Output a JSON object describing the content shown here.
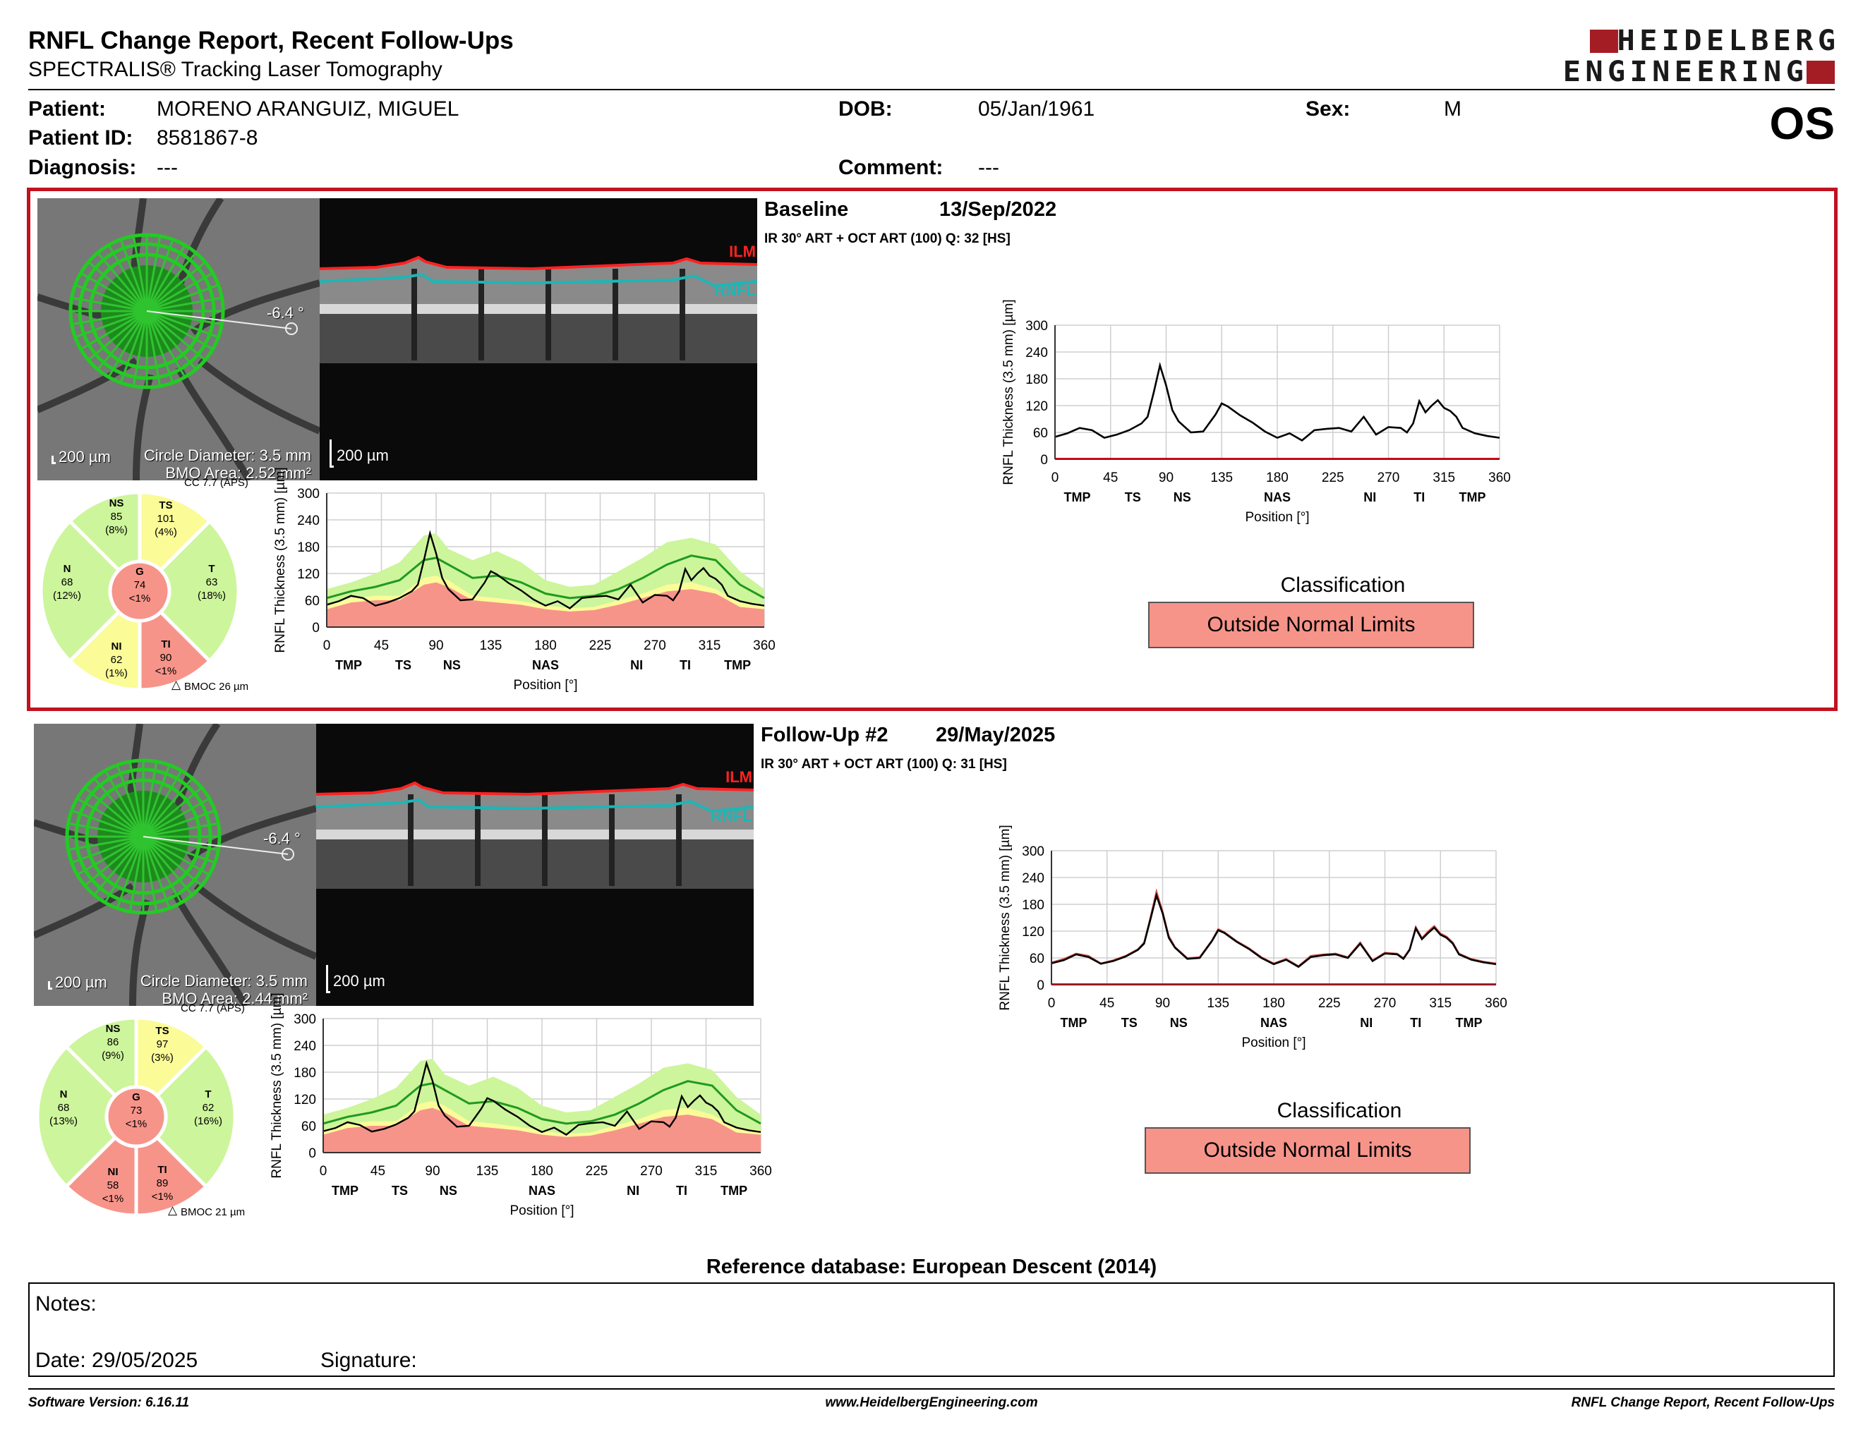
{
  "header": {
    "title": "RNFL Change Report, Recent Follow-Ups",
    "subtitle": "SPECTRALIS® Tracking Laser Tomography",
    "logo_line1": "HEIDELBERG",
    "logo_line2": "ENGINEERING",
    "eye": "OS"
  },
  "patient": {
    "name_label": "Patient:",
    "name": "MORENO ARANGUIZ, MIGUEL",
    "id_label": "Patient ID:",
    "id": "8581867-8",
    "diagnosis_label": "Diagnosis:",
    "diagnosis": "---",
    "dob_label": "DOB:",
    "dob": "05/Jan/1961",
    "sex_label": "Sex:",
    "sex": "M",
    "comment_label": "Comment:",
    "comment": "---"
  },
  "colors": {
    "outside": "#f7948a",
    "borderline": "#fbfb98",
    "within": "#cdf59b",
    "accent": "#c1121f"
  },
  "panels": [
    {
      "title": "Baseline",
      "date": "13/Sep/2022",
      "scan_info": "IR 30° ART + OCT ART (100) Q: 32 [HS]",
      "angle": "-6.4 °",
      "scale_fundus": "200 µm",
      "scale_bscan": "200 µm",
      "circle_diameter": "Circle Diameter: 3.5 mm",
      "bmo_area": "BMO Area: 2.52 mm²",
      "cc": "CC 7.7 (APS)",
      "bmoc": "BMOC 26 µm",
      "ilm": "ILM",
      "rnfl": "RNFL",
      "sectors": {
        "NS": {
          "label": "NS",
          "value": "85",
          "pct": "(8%)",
          "cls": "within"
        },
        "TS": {
          "label": "TS",
          "value": "101",
          "pct": "(4%)",
          "cls": "borderline"
        },
        "N": {
          "label": "N",
          "value": "68",
          "pct": "(12%)",
          "cls": "within"
        },
        "G": {
          "label": "G",
          "value": "74",
          "pct": "<1%",
          "cls": "outside"
        },
        "T": {
          "label": "T",
          "value": "63",
          "pct": "(18%)",
          "cls": "within"
        },
        "NI": {
          "label": "NI",
          "value": "62",
          "pct": "(1%)",
          "cls": "borderline"
        },
        "TI": {
          "label": "TI",
          "value": "90",
          "pct": "<1%",
          "cls": "outside"
        }
      },
      "classification_label": "Classification",
      "classification": "Outside Normal Limits"
    },
    {
      "title": "Follow-Up #2",
      "date": "29/May/2025",
      "scan_info": "IR 30° ART + OCT ART (100) Q: 31 [HS]",
      "angle": "-6.4 °",
      "scale_fundus": "200 µm",
      "scale_bscan": "200 µm",
      "circle_diameter": "Circle Diameter: 3.5 mm",
      "bmo_area": "BMO Area: 2.44 mm²",
      "cc": "CC 7.7 (APS)",
      "bmoc": "BMOC 21 µm",
      "ilm": "ILM",
      "rnfl": "RNFL",
      "sectors": {
        "NS": {
          "label": "NS",
          "value": "86",
          "pct": "(9%)",
          "cls": "within"
        },
        "TS": {
          "label": "TS",
          "value": "97",
          "pct": "(3%)",
          "cls": "borderline"
        },
        "N": {
          "label": "N",
          "value": "68",
          "pct": "(13%)",
          "cls": "within"
        },
        "G": {
          "label": "G",
          "value": "73",
          "pct": "<1%",
          "cls": "outside"
        },
        "T": {
          "label": "T",
          "value": "62",
          "pct": "(16%)",
          "cls": "within"
        },
        "NI": {
          "label": "NI",
          "value": "58",
          "pct": "<1%",
          "cls": "outside"
        },
        "TI": {
          "label": "TI",
          "value": "89",
          "pct": "<1%",
          "cls": "outside"
        }
      },
      "classification_label": "Classification",
      "classification": "Outside Normal Limits"
    }
  ],
  "chart_data": [
    {
      "type": "line",
      "ylabel": "RNFL Thickness (3.5 mm) [µm]",
      "xlabel": "Position [°]",
      "xlim": [
        0,
        360
      ],
      "ylim": [
        0,
        300
      ],
      "xticks": [
        0,
        45,
        90,
        135,
        180,
        225,
        270,
        315,
        360
      ],
      "yticks": [
        0,
        60,
        120,
        180,
        240,
        300
      ],
      "sector_labels": [
        {
          "label": "TMP",
          "x": 18
        },
        {
          "label": "TS",
          "x": 63
        },
        {
          "label": "NS",
          "x": 103
        },
        {
          "label": "NAS",
          "x": 180
        },
        {
          "label": "NI",
          "x": 255
        },
        {
          "label": "TI",
          "x": 295
        },
        {
          "label": "TMP",
          "x": 338
        }
      ],
      "x": [
        0,
        10,
        20,
        30,
        40,
        50,
        60,
        70,
        75,
        80,
        85,
        90,
        95,
        100,
        110,
        120,
        130,
        135,
        140,
        150,
        160,
        170,
        180,
        190,
        200,
        210,
        220,
        230,
        240,
        250,
        260,
        270,
        280,
        285,
        290,
        295,
        300,
        305,
        310,
        315,
        320,
        325,
        330,
        340,
        350,
        360
      ],
      "series": [
        {
          "name": "baseline",
          "values": [
            50,
            58,
            70,
            65,
            48,
            55,
            65,
            80,
            95,
            150,
            210,
            165,
            110,
            85,
            60,
            62,
            100,
            125,
            118,
            98,
            82,
            62,
            48,
            58,
            42,
            65,
            68,
            70,
            62,
            95,
            55,
            72,
            70,
            60,
            80,
            130,
            105,
            120,
            132,
            115,
            108,
            95,
            70,
            58,
            52,
            48
          ]
        },
        {
          "name": "follow_up",
          "values": [
            48,
            55,
            68,
            62,
            47,
            53,
            63,
            78,
            92,
            145,
            200,
            160,
            105,
            83,
            58,
            60,
            98,
            122,
            116,
            96,
            80,
            60,
            46,
            56,
            40,
            62,
            66,
            68,
            60,
            92,
            53,
            70,
            68,
            58,
            78,
            126,
            102,
            116,
            128,
            112,
            105,
            92,
            68,
            56,
            50,
            46
          ]
        }
      ],
      "normal_bands": {
        "x": [
          0,
          20,
          40,
          60,
          80,
          90,
          100,
          120,
          140,
          160,
          180,
          200,
          220,
          240,
          260,
          280,
          300,
          320,
          340,
          360
        ],
        "p1": [
          40,
          55,
          60,
          60,
          95,
          100,
          90,
          60,
          55,
          50,
          40,
          35,
          38,
          50,
          65,
          80,
          85,
          75,
          45,
          40
        ],
        "p5": [
          50,
          65,
          70,
          70,
          110,
          115,
          105,
          70,
          65,
          58,
          48,
          42,
          45,
          60,
          75,
          95,
          100,
          85,
          55,
          50
        ],
        "mean": [
          65,
          80,
          90,
          105,
          150,
          155,
          140,
          110,
          115,
          100,
          75,
          65,
          70,
          85,
          110,
          140,
          160,
          150,
          95,
          65
        ],
        "p95": [
          85,
          100,
          120,
          145,
          205,
          210,
          175,
          150,
          170,
          145,
          105,
          90,
          95,
          125,
          155,
          190,
          200,
          185,
          125,
          85
        ]
      }
    }
  ],
  "reference_db": "Reference database: European Descent (2014)",
  "notes": {
    "label": "Notes:",
    "date_label": "Date: 29/05/2025",
    "signature_label": "Signature:"
  },
  "footer": {
    "software": "Software Version: 6.16.11",
    "url": "www.HeidelbergEngineering.com",
    "report": "RNFL Change Report, Recent Follow-Ups"
  }
}
